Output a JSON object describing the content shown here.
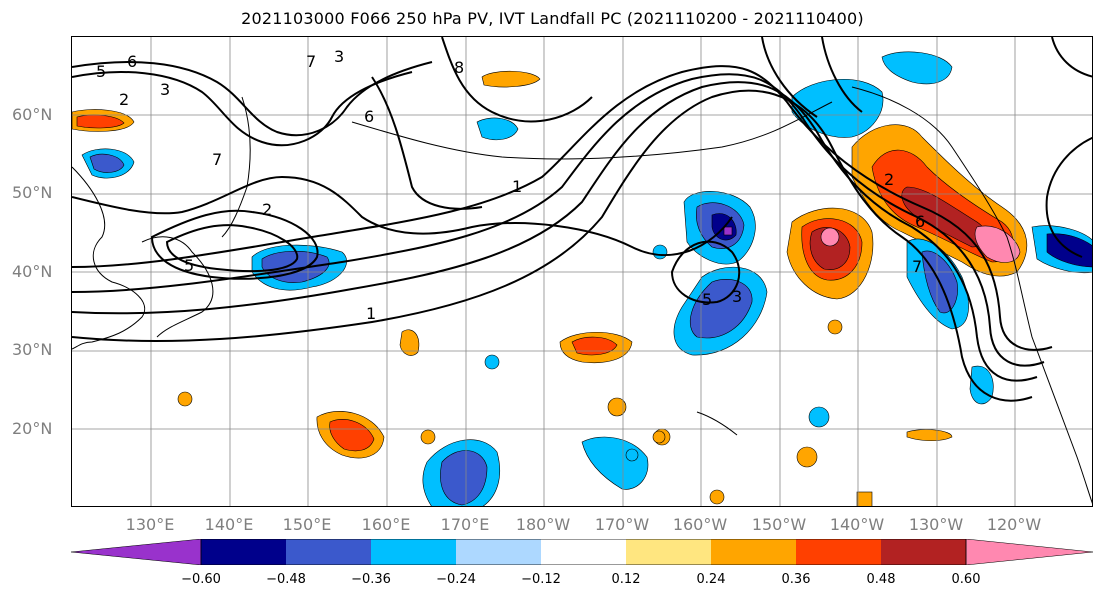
{
  "title": "2021103000 F066 250 hPa PV, IVT Landfall PC (2021110200 - 2021110400)",
  "lat_labels": [
    "60°N",
    "50°N",
    "40°N",
    "30°N",
    "20°N"
  ],
  "lon_labels": [
    "130°E",
    "140°E",
    "150°E",
    "160°E",
    "170°E",
    "180°W",
    "170°W",
    "160°W",
    "150°W",
    "140°W",
    "130°W",
    "120°W"
  ],
  "contour_labels": [
    "6",
    "5",
    "2",
    "3",
    "3",
    "7",
    "8",
    "6",
    "2",
    "7",
    "1",
    "5",
    "3",
    "5",
    "1",
    "2",
    "6",
    "7"
  ],
  "colorbar": {
    "ticks": [
      "−0.60",
      "−0.48",
      "−0.36",
      "−0.24",
      "−0.12",
      "0.12",
      "0.24",
      "0.36",
      "0.48",
      "0.60"
    ],
    "colors": [
      "#9932cc",
      "#00008b",
      "#3b59cc",
      "#00bfff",
      "#add8ff",
      "#ffffff",
      "#ffe680",
      "#ffa500",
      "#ff4000",
      "#b22222",
      "#ff88b0"
    ]
  }
}
